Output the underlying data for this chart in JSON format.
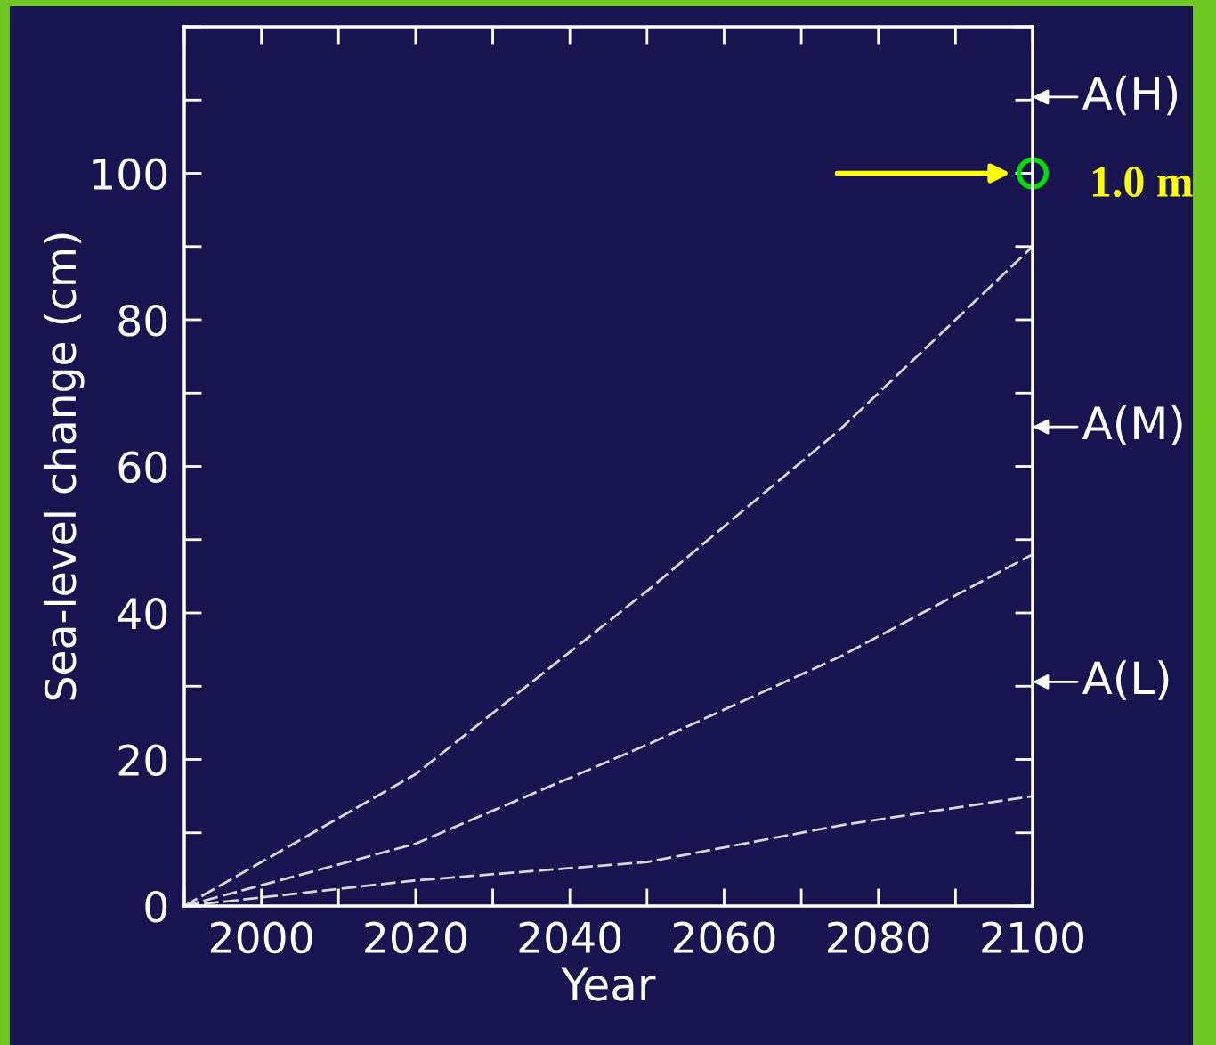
{
  "chart_data": {
    "type": "line",
    "xlabel": "Year",
    "ylabel": "Sea-level change (cm)",
    "xlim": [
      1990,
      2100
    ],
    "ylim": [
      0,
      120
    ],
    "xticks": [
      2000,
      2020,
      2040,
      2060,
      2080,
      2100
    ],
    "yticks": [
      0,
      20,
      40,
      60,
      80,
      100
    ],
    "x": [
      1990,
      2020,
      2050,
      2075,
      2100
    ],
    "series": [
      {
        "color": "#d8d8d8",
        "values": [
          0,
          18,
          43,
          65,
          90
        ]
      },
      {
        "color": "#d8d8d8",
        "values": [
          0,
          8.5,
          22,
          34,
          48
        ]
      },
      {
        "color": "#d8d8d8",
        "values": [
          0,
          3.5,
          6,
          11,
          15
        ]
      }
    ],
    "annotations": [
      "A(H)",
      "A(M)",
      "A(L)",
      {
        "text": "1.0 m",
        "x": 2100,
        "y": 100
      }
    ],
    "grid": false,
    "legend": false,
    "marker": "none",
    "line_style": "dashed"
  }
}
